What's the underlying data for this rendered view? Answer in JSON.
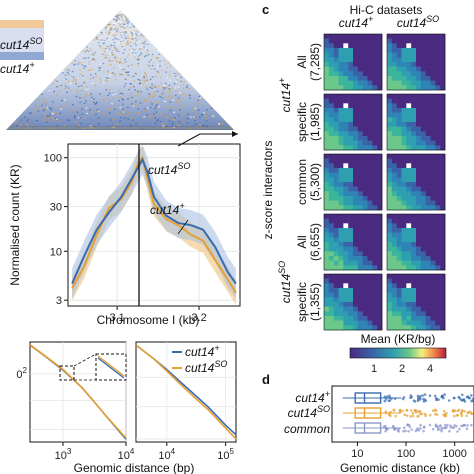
{
  "panel_letters": {
    "c": "c",
    "d": "d"
  },
  "colors": {
    "wt": "#3a6bb0",
    "so": "#e6a030",
    "common": "#8b96c9",
    "wt_band": "#a9c1e2",
    "so_band": "#f2cf94"
  },
  "triangle_labels": {
    "so": "cut14",
    "so_sup": "SO",
    "wt": "cut14",
    "wt_sup": "+"
  },
  "panel_b": {
    "ylabel": "Normalised count (KR)",
    "xlabel": "Chromosome I (kb)",
    "y_ticks": [
      "100",
      "30",
      "10",
      "3"
    ],
    "x_ticks": [
      "3.1",
      "3.2"
    ],
    "label_so": "cut14",
    "label_so_sup": "SO",
    "label_wt": "cut14",
    "label_wt_sup": "+"
  },
  "panel_e": {
    "xlabel": "Genomic distance (bp)",
    "left_y_tick": "0",
    "left_y_tick_sup": "2",
    "left_x_ticks": [
      {
        "base": "10",
        "exp": "3"
      },
      {
        "base": "10",
        "exp": "4"
      }
    ],
    "right_x_ticks": [
      {
        "base": "10",
        "exp": "4"
      },
      {
        "base": "10",
        "exp": "5"
      }
    ],
    "legend": [
      {
        "label": "cut14",
        "sup": "+",
        "color": "#3a6bb0"
      },
      {
        "label": "cut14",
        "sup": "SO",
        "color": "#e6a030"
      }
    ]
  },
  "panel_c": {
    "title": "Hi-C datasets",
    "col_headers": [
      {
        "label": "cut14",
        "sup": "+"
      },
      {
        "label": "cut14",
        "sup": "SO"
      }
    ],
    "y_axis_label": "z-score interactors",
    "group_wt": {
      "label": "cut14",
      "sup": "+"
    },
    "group_so": {
      "label": "cut14",
      "sup": "SO"
    },
    "rows": [
      {
        "name": "All",
        "count": "(7,285)"
      },
      {
        "name": "specific",
        "count": "(1,985)"
      },
      {
        "name": "common",
        "count": "(5,300)"
      },
      {
        "name": "All",
        "count": "(6,655)"
      },
      {
        "name": "specific",
        "count": "(1,355)"
      }
    ],
    "colorbar_label": "Mean (KR/bg)",
    "colorbar_ticks": [
      "1",
      "2",
      "4"
    ]
  },
  "panel_d": {
    "categories": [
      {
        "label": "cut14",
        "sup": "+",
        "color": "#3a6bb0"
      },
      {
        "label": "cut14",
        "sup": "SO",
        "color": "#e6a030"
      },
      {
        "label": "common",
        "sup": "",
        "color": "#8b96c9"
      }
    ],
    "x_ticks": [
      "10",
      "100",
      "1000"
    ],
    "xlabel": "Genomic distance (kb)"
  },
  "chart_data": [
    {
      "type": "line",
      "panel": "b",
      "xlabel": "Chromosome I (kb)",
      "ylabel": "Normalised count (KR)",
      "y_scale": "log",
      "ylim": [
        2.6,
        140
      ],
      "xlim": [
        3.04,
        3.25
      ],
      "series": [
        {
          "name": "cut14+",
          "x": [
            3.045,
            3.06,
            3.075,
            3.09,
            3.105,
            3.118,
            3.126,
            3.131,
            3.137,
            3.145,
            3.16,
            3.175,
            3.19,
            3.205,
            3.22,
            3.235,
            3.245
          ],
          "values": [
            4.5,
            9,
            17,
            26,
            38,
            60,
            80,
            95,
            70,
            38,
            24,
            20,
            19,
            17,
            11,
            6,
            4.5
          ]
        },
        {
          "name": "cut14SO",
          "x": [
            3.045,
            3.06,
            3.075,
            3.09,
            3.105,
            3.118,
            3.126,
            3.131,
            3.137,
            3.145,
            3.16,
            3.175,
            3.19,
            3.205,
            3.22,
            3.235,
            3.245
          ],
          "values": [
            4,
            7,
            15,
            29,
            36,
            55,
            90,
            100,
            60,
            32,
            22,
            19,
            15,
            13,
            8,
            5,
            3.6
          ]
        }
      ]
    },
    {
      "type": "line",
      "panel": "e-left",
      "xlabel": "Genomic distance (bp)",
      "x_scale": "log",
      "y_scale": "log",
      "xlim": [
        300,
        10000
      ],
      "series": [
        {
          "name": "cut14+",
          "x": [
            300,
            600,
            1000,
            2000,
            3000,
            5000,
            10000
          ],
          "values": [
            1.0,
            0.55,
            0.35,
            0.17,
            0.1,
            0.05,
            0.02
          ]
        },
        {
          "name": "cut14SO",
          "x": [
            300,
            600,
            1000,
            2000,
            3000,
            5000,
            10000
          ],
          "values": [
            1.0,
            0.56,
            0.36,
            0.17,
            0.1,
            0.05,
            0.021
          ]
        }
      ]
    },
    {
      "type": "line",
      "panel": "e-right",
      "xlabel": "Genomic distance (bp)",
      "x_scale": "log",
      "y_scale": "log",
      "xlim": [
        3000,
        150000
      ],
      "series": [
        {
          "name": "cut14+",
          "x": [
            3000,
            6000,
            10000,
            20000,
            50000,
            100000,
            150000
          ],
          "values": [
            1.0,
            0.6,
            0.4,
            0.22,
            0.1,
            0.05,
            0.035
          ]
        },
        {
          "name": "cut14SO",
          "x": [
            3000,
            6000,
            10000,
            20000,
            50000,
            100000,
            150000
          ],
          "values": [
            1.0,
            0.6,
            0.38,
            0.2,
            0.09,
            0.045,
            0.03
          ]
        }
      ]
    }
  ]
}
